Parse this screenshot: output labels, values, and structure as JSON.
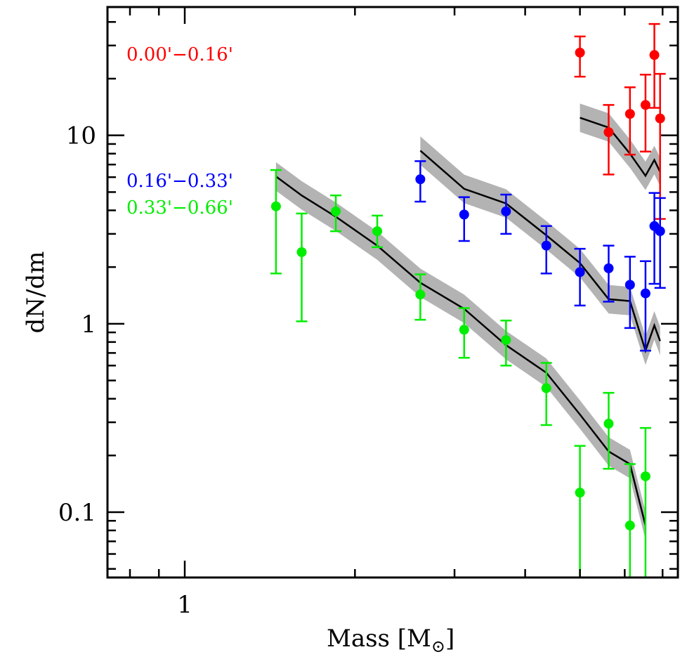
{
  "chart_data": {
    "type": "scatter",
    "title": "",
    "xlabel": "Mass [M",
    "xlabel_sub": "⊙",
    "xlabel_close": "]",
    "ylabel": "dN/dm",
    "xscale": "log",
    "yscale": "log",
    "xlim": [
      0.73,
      7.45
    ],
    "ylim": [
      0.045,
      48
    ],
    "x_tick_labels": [
      {
        "value": 1,
        "label": "1"
      }
    ],
    "x_minor_ticks": [
      0.8,
      0.9,
      2,
      3,
      4,
      5,
      6,
      7
    ],
    "y_tick_labels": [
      {
        "value": 0.1,
        "label": "0.1"
      },
      {
        "value": 1,
        "label": "1"
      },
      {
        "value": 10,
        "label": "10"
      }
    ],
    "grid": false,
    "legend": [
      {
        "label": "0.00'−0.16'",
        "color": "#ff0000",
        "placement": "top-left"
      },
      {
        "label": "0.16'−0.33'",
        "color": "#0000ff",
        "placement": "upper-left"
      },
      {
        "label": "0.33'−0.66'",
        "color": "#00ee00",
        "placement": "upper-left"
      }
    ],
    "series": [
      {
        "name": "0.00'-0.16'",
        "color": "#ff0000",
        "points": [
          {
            "x": 5.0,
            "y": 27.5,
            "ylo": 20.5,
            "yhi": 33.5
          },
          {
            "x": 5.62,
            "y": 10.4,
            "ylo": 6.2,
            "yhi": 14.5
          },
          {
            "x": 6.13,
            "y": 13.0,
            "ylo": 7.9,
            "yhi": 18.0
          },
          {
            "x": 6.53,
            "y": 14.5,
            "ylo": 8.2,
            "yhi": 21.0
          },
          {
            "x": 6.77,
            "y": 26.7,
            "ylo": 14.0,
            "yhi": 39.0
          },
          {
            "x": 6.93,
            "y": 12.3,
            "ylo": 3.6,
            "yhi": 21.2
          }
        ],
        "model": {
          "x": [
            5.0,
            5.62,
            6.13,
            6.53,
            6.77,
            6.93
          ],
          "y": [
            12.4,
            11.0,
            8.0,
            6.1,
            7.4,
            6.4
          ],
          "band_factor": 1.19
        }
      },
      {
        "name": "0.16'-0.33'",
        "color": "#0000ff",
        "points": [
          {
            "x": 2.61,
            "y": 5.85,
            "ylo": 4.45,
            "yhi": 7.3
          },
          {
            "x": 3.12,
            "y": 3.8,
            "ylo": 2.75,
            "yhi": 4.7
          },
          {
            "x": 3.7,
            "y": 3.95,
            "ylo": 3.0,
            "yhi": 4.85
          },
          {
            "x": 4.36,
            "y": 2.6,
            "ylo": 1.85,
            "yhi": 3.3
          },
          {
            "x": 5.0,
            "y": 1.88,
            "ylo": 1.25,
            "yhi": 2.5
          },
          {
            "x": 5.62,
            "y": 1.97,
            "ylo": 1.31,
            "yhi": 2.6
          },
          {
            "x": 6.13,
            "y": 1.61,
            "ylo": 0.95,
            "yhi": 2.27
          },
          {
            "x": 6.53,
            "y": 1.45,
            "ylo": 0.72,
            "yhi": 2.15
          },
          {
            "x": 6.77,
            "y": 3.3,
            "ylo": 1.63,
            "yhi": 4.95
          },
          {
            "x": 6.93,
            "y": 3.1,
            "ylo": 1.55,
            "yhi": 4.65
          }
        ],
        "model": {
          "x": [
            2.61,
            3.12,
            3.7,
            4.36,
            5.0,
            5.62,
            6.13,
            6.53,
            6.77,
            6.93
          ],
          "y": [
            8.3,
            5.2,
            4.35,
            2.95,
            2.1,
            1.35,
            1.32,
            0.72,
            0.98,
            0.81
          ],
          "band_factor": 1.19
        }
      },
      {
        "name": "0.33'-0.66'",
        "color": "#00ee00",
        "points": [
          {
            "x": 1.45,
            "y": 4.2,
            "ylo": 1.85,
            "yhi": 6.55
          },
          {
            "x": 1.61,
            "y": 2.4,
            "ylo": 1.03,
            "yhi": 3.85
          },
          {
            "x": 1.85,
            "y": 3.95,
            "ylo": 3.1,
            "yhi": 4.8
          },
          {
            "x": 2.19,
            "y": 3.1,
            "ylo": 2.55,
            "yhi": 3.75
          },
          {
            "x": 2.61,
            "y": 1.43,
            "ylo": 1.05,
            "yhi": 1.83
          },
          {
            "x": 3.12,
            "y": 0.93,
            "ylo": 0.66,
            "yhi": 1.21
          },
          {
            "x": 3.7,
            "y": 0.82,
            "ylo": 0.6,
            "yhi": 1.04
          },
          {
            "x": 4.36,
            "y": 0.455,
            "ylo": 0.29,
            "yhi": 0.62
          },
          {
            "x": 5.0,
            "y": 0.127,
            "ylo": 0.02,
            "yhi": 0.225
          },
          {
            "x": 5.62,
            "y": 0.295,
            "ylo": 0.17,
            "yhi": 0.43
          },
          {
            "x": 6.13,
            "y": 0.085,
            "ylo": 0.02,
            "yhi": 0.18
          },
          {
            "x": 6.53,
            "y": 0.155,
            "ylo": 0.02,
            "yhi": 0.28
          }
        ],
        "model": {
          "x": [
            1.45,
            1.61,
            1.85,
            2.19,
            2.61,
            3.12,
            3.7,
            4.36,
            5.0,
            5.62,
            6.13,
            6.53
          ],
          "y": [
            6.05,
            4.8,
            3.7,
            2.6,
            1.65,
            1.2,
            0.77,
            0.55,
            0.33,
            0.21,
            0.18,
            0.085
          ],
          "band_factor": 1.19
        }
      }
    ]
  }
}
